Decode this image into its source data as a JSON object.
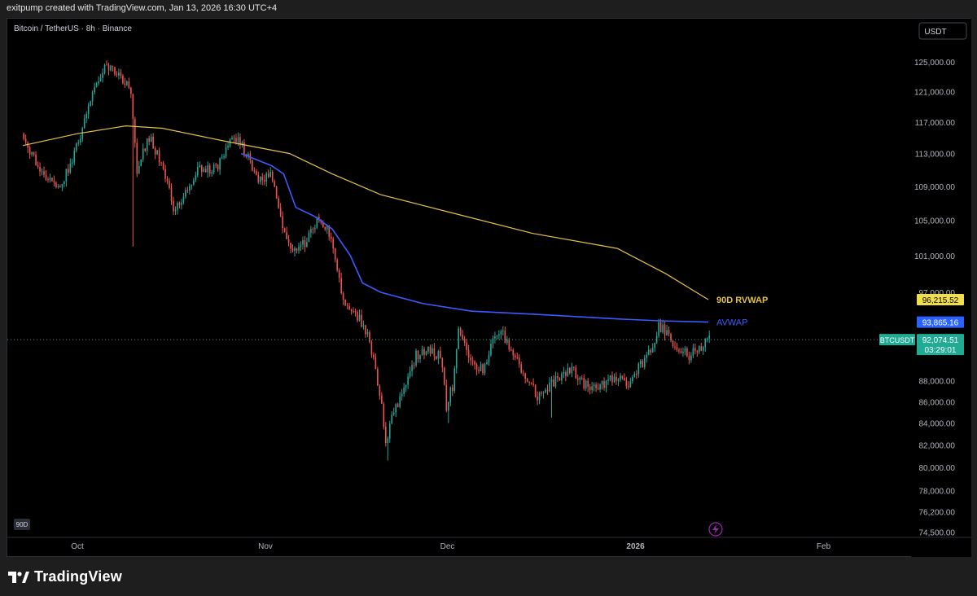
{
  "header": {
    "text": "exitpump created with TradingView.com, Jan 13, 2026 16:30 UTC+4"
  },
  "symbol_label": "Bitcoin / TetherUS · 8h · Binance",
  "currency_button": "USDT",
  "interval_badge": "90D",
  "footer": {
    "brand": "TradingView"
  },
  "colors": {
    "bull": "#26a69a",
    "bear": "#ef5350",
    "rvwap": "#e3c04a",
    "avwap": "#3b5bff",
    "price_tag": "#22ab94"
  },
  "chart_data": {
    "type": "candlestick",
    "title": "Bitcoin / TetherUS · 8h · Binance",
    "x_ticks": [
      "Oct",
      "Nov",
      "Dec",
      "2026",
      "Feb"
    ],
    "y_ticks": [
      "125,000.00",
      "121,000.00",
      "117,000.00",
      "113,000.00",
      "109,000.00",
      "105,000.00",
      "101,000.00",
      "97,000.00",
      "88,000.00",
      "86,000.00",
      "84,000.00",
      "82,000.00",
      "80,000.00",
      "78,000.00",
      "76,200.00",
      "74,500.00"
    ],
    "y_scale": "log",
    "ylim": [
      74500,
      125500
    ],
    "date_range": [
      "2025-09-22",
      "2026-01-13"
    ],
    "price_path": [
      [
        "2025-09-22",
        115500
      ],
      [
        "2025-09-25",
        111000
      ],
      [
        "2025-09-28",
        109000
      ],
      [
        "2025-09-30",
        111500
      ],
      [
        "2025-10-02",
        116000
      ],
      [
        "2025-10-04",
        121500
      ],
      [
        "2025-10-06",
        124500
      ],
      [
        "2025-10-08",
        123000
      ],
      [
        "2025-10-10",
        121000
      ],
      [
        "2025-10-11",
        111000
      ],
      [
        "2025-10-13",
        115000
      ],
      [
        "2025-10-15",
        112000
      ],
      [
        "2025-10-17",
        106500
      ],
      [
        "2025-10-19",
        108000
      ],
      [
        "2025-10-21",
        111000
      ],
      [
        "2025-10-24",
        111000
      ],
      [
        "2025-10-27",
        115500
      ],
      [
        "2025-10-29",
        113000
      ],
      [
        "2025-10-31",
        109500
      ],
      [
        "2025-11-02",
        110500
      ],
      [
        "2025-11-04",
        104000
      ],
      [
        "2025-11-06",
        101500
      ],
      [
        "2025-11-08",
        102500
      ],
      [
        "2025-11-10",
        105500
      ],
      [
        "2025-11-12",
        103000
      ],
      [
        "2025-11-14",
        96000
      ],
      [
        "2025-11-16",
        95000
      ],
      [
        "2025-11-18",
        92500
      ],
      [
        "2025-11-20",
        87000
      ],
      [
        "2025-11-21",
        82000
      ],
      [
        "2025-11-22",
        84500
      ],
      [
        "2025-11-24",
        87500
      ],
      [
        "2025-11-26",
        90500
      ],
      [
        "2025-11-28",
        91000
      ],
      [
        "2025-11-30",
        90500
      ],
      [
        "2025-12-01",
        85500
      ],
      [
        "2025-12-02",
        87500
      ],
      [
        "2025-12-03",
        93500
      ],
      [
        "2025-12-05",
        90000
      ],
      [
        "2025-12-07",
        89000
      ],
      [
        "2025-12-09",
        92500
      ],
      [
        "2025-12-10",
        93000
      ],
      [
        "2025-12-12",
        90500
      ],
      [
        "2025-12-14",
        88500
      ],
      [
        "2025-12-16",
        86500
      ],
      [
        "2025-12-18",
        87500
      ],
      [
        "2025-12-20",
        88500
      ],
      [
        "2025-12-22",
        89000
      ],
      [
        "2025-12-24",
        87500
      ],
      [
        "2025-12-26",
        87500
      ],
      [
        "2025-12-28",
        88000
      ],
      [
        "2025-12-30",
        88000
      ],
      [
        "2025-12-31",
        87500
      ],
      [
        "2026-01-02",
        89500
      ],
      [
        "2026-01-04",
        91500
      ],
      [
        "2026-01-05",
        93500
      ],
      [
        "2026-01-06",
        93000
      ],
      [
        "2026-01-08",
        91000
      ],
      [
        "2026-01-10",
        90500
      ],
      [
        "2026-01-12",
        91500
      ],
      [
        "2026-01-13",
        92074.51
      ]
    ],
    "wicks": [
      [
        "2025-10-10",
        102000
      ],
      [
        "2025-11-21",
        80600
      ],
      [
        "2025-12-01",
        84000
      ],
      [
        "2025-12-18",
        84500
      ]
    ],
    "series": [
      {
        "name": "90D RVWAP",
        "color": "#e3c04a",
        "last_value": "96,215.52",
        "points": [
          [
            "2025-09-22",
            114000
          ],
          [
            "2025-10-01",
            115500
          ],
          [
            "2025-10-09",
            116500
          ],
          [
            "2025-10-15",
            116200
          ],
          [
            "2025-10-25",
            114600
          ],
          [
            "2025-11-05",
            113000
          ],
          [
            "2025-11-12",
            110500
          ],
          [
            "2025-11-20",
            108000
          ],
          [
            "2025-12-01",
            106000
          ],
          [
            "2025-12-15",
            103500
          ],
          [
            "2025-12-29",
            101800
          ],
          [
            "2026-01-06",
            99000
          ],
          [
            "2026-01-13",
            96215.52
          ]
        ]
      },
      {
        "name": "AVWAP",
        "color": "#3b5bff",
        "last_value": "93,865.16",
        "points": [
          [
            "2025-10-28",
            113000
          ],
          [
            "2025-11-02",
            111500
          ],
          [
            "2025-11-04",
            110500
          ],
          [
            "2025-11-06",
            106500
          ],
          [
            "2025-11-09",
            105500
          ],
          [
            "2025-11-12",
            104000
          ],
          [
            "2025-11-15",
            101000
          ],
          [
            "2025-11-17",
            98000
          ],
          [
            "2025-11-20",
            97000
          ],
          [
            "2025-11-27",
            95800
          ],
          [
            "2025-12-05",
            95000
          ],
          [
            "2025-12-15",
            94700
          ],
          [
            "2025-12-29",
            94200
          ],
          [
            "2026-01-05",
            94000
          ],
          [
            "2026-01-13",
            93865.16
          ]
        ]
      }
    ],
    "last_price": {
      "symbol": "BTCUSDT",
      "value": "92,074.51",
      "countdown": "03:29:01"
    }
  }
}
